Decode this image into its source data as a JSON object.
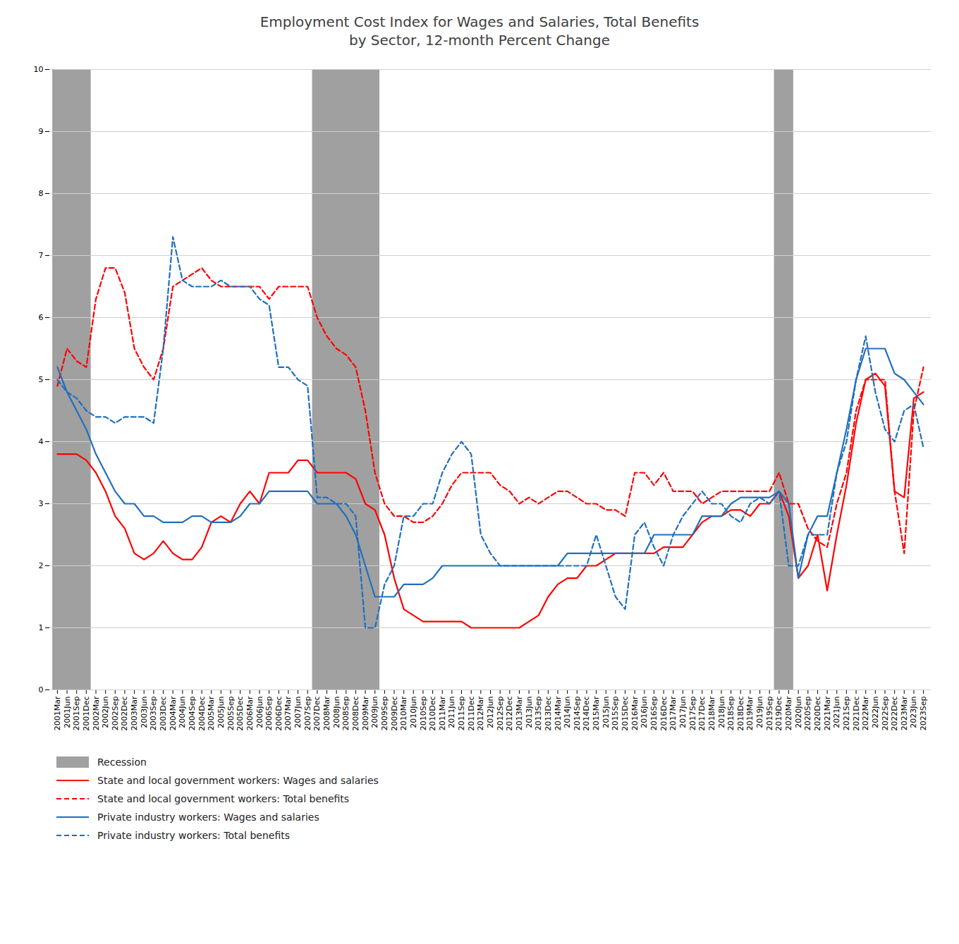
{
  "chart_data": {
    "type": "line",
    "title": "Employment Cost Index for Wages and Salaries, Total Benefits\nby Sector, 12-month Percent Change",
    "categories": [
      "2001Mar",
      "2001Jun",
      "2001Sep",
      "2001Dec",
      "2002Mar",
      "2002Jun",
      "2002Sep",
      "2002Dec",
      "2003Mar",
      "2003Jun",
      "2003Sep",
      "2003Dec",
      "2004Mar",
      "2004Jun",
      "2004Sep",
      "2004Dec",
      "2005Mar",
      "2005Jun",
      "2005Sep",
      "2005Dec",
      "2006Mar",
      "2006Jun",
      "2006Sep",
      "2006Dec",
      "2007Mar",
      "2007Jun",
      "2007Sep",
      "2007Dec",
      "2008Mar",
      "2008Jun",
      "2008Sep",
      "2008Dec",
      "2009Mar",
      "2009Jun",
      "2009Sep",
      "2009Dec",
      "2010Mar",
      "2010Jun",
      "2010Sep",
      "2010Dec",
      "2011Mar",
      "2011Jun",
      "2011Sep",
      "2011Dec",
      "2012Mar",
      "2012Jun",
      "2012Sep",
      "2012Dec",
      "2013Mar",
      "2013Jun",
      "2013Sep",
      "2013Dec",
      "2014Mar",
      "2014Jun",
      "2014Sep",
      "2014Dec",
      "2015Mar",
      "2015Jun",
      "2015Sep",
      "2015Dec",
      "2016Mar",
      "2016Jun",
      "2016Sep",
      "2016Dec",
      "2017Mar",
      "2017Jun",
      "2017Sep",
      "2017Dec",
      "2018Mar",
      "2018Jun",
      "2018Sep",
      "2018Dec",
      "2019Mar",
      "2019Jun",
      "2019Sep",
      "2019Dec",
      "2020Mar",
      "2020Jun",
      "2020Sep",
      "2020Dec",
      "2021Mar",
      "2021Jun",
      "2021Sep",
      "2021Dec",
      "2022Mar",
      "2022Jun",
      "2022Sep",
      "2022Dec",
      "2023Mar",
      "2023Jun",
      "2023Sep"
    ],
    "shaded_spans": {
      "name": "Recession",
      "color": "#A0A0A0",
      "spans": [
        [
          "2001Mar",
          "2001Dec"
        ],
        [
          "2007Dec",
          "2009Jun"
        ],
        [
          "2019Dec",
          "2020Mar"
        ]
      ]
    },
    "series": [
      {
        "name": "State and local government workers: Wages and salaries",
        "color": "#FF0000",
        "line_style": "solid",
        "values": [
          3.8,
          3.8,
          3.8,
          3.7,
          3.5,
          3.2,
          2.8,
          2.6,
          2.2,
          2.1,
          2.2,
          2.4,
          2.2,
          2.1,
          2.1,
          2.3,
          2.7,
          2.8,
          2.7,
          3.0,
          3.2,
          3.0,
          3.5,
          3.5,
          3.5,
          3.7,
          3.7,
          3.5,
          3.5,
          3.5,
          3.5,
          3.4,
          3.0,
          2.9,
          2.5,
          1.8,
          1.3,
          1.2,
          1.1,
          1.1,
          1.1,
          1.1,
          1.1,
          1.0,
          1.0,
          1.0,
          1.0,
          1.0,
          1.0,
          1.1,
          1.2,
          1.5,
          1.7,
          1.8,
          1.8,
          2.0,
          2.0,
          2.1,
          2.2,
          2.2,
          2.2,
          2.2,
          2.2,
          2.3,
          2.3,
          2.3,
          2.5,
          2.7,
          2.8,
          2.8,
          2.9,
          2.9,
          2.8,
          3.0,
          3.0,
          3.2,
          2.8,
          1.8,
          2.0,
          2.5,
          1.6,
          2.5,
          3.3,
          4.3,
          5.0,
          5.1,
          4.9,
          3.2,
          3.1,
          4.7,
          4.8
        ]
      },
      {
        "name": "State and local government workers: Total benefits",
        "color": "#FF0000",
        "line_style": "dashed",
        "values": [
          4.9,
          5.5,
          5.3,
          5.2,
          6.3,
          6.8,
          6.8,
          6.4,
          5.5,
          5.2,
          5.0,
          5.5,
          6.5,
          6.6,
          6.7,
          6.8,
          6.6,
          6.5,
          6.5,
          6.5,
          6.5,
          6.5,
          6.3,
          6.5,
          6.5,
          6.5,
          6.5,
          6.0,
          5.7,
          5.5,
          5.4,
          5.2,
          4.5,
          3.5,
          3.0,
          2.8,
          2.8,
          2.7,
          2.7,
          2.8,
          3.0,
          3.3,
          3.5,
          3.5,
          3.5,
          3.5,
          3.3,
          3.2,
          3.0,
          3.1,
          3.0,
          3.1,
          3.2,
          3.2,
          3.1,
          3.0,
          3.0,
          2.9,
          2.9,
          2.8,
          3.5,
          3.5,
          3.3,
          3.5,
          3.2,
          3.2,
          3.2,
          3.0,
          3.1,
          3.2,
          3.2,
          3.2,
          3.2,
          3.2,
          3.2,
          3.5,
          3.0,
          3.0,
          2.6,
          2.4,
          2.3,
          3.0,
          3.5,
          4.5,
          5.0,
          5.0,
          5.0,
          3.2,
          2.2,
          4.5,
          5.2
        ]
      },
      {
        "name": "Private industry workers: Wages and salaries",
        "color": "#1F6FBF",
        "line_style": "solid",
        "values": [
          5.2,
          4.8,
          4.5,
          4.2,
          3.8,
          3.5,
          3.2,
          3.0,
          3.0,
          2.8,
          2.8,
          2.7,
          2.7,
          2.7,
          2.8,
          2.8,
          2.7,
          2.7,
          2.7,
          2.8,
          3.0,
          3.0,
          3.2,
          3.2,
          3.2,
          3.2,
          3.2,
          3.0,
          3.0,
          3.0,
          2.8,
          2.5,
          2.0,
          1.5,
          1.5,
          1.5,
          1.7,
          1.7,
          1.7,
          1.8,
          2.0,
          2.0,
          2.0,
          2.0,
          2.0,
          2.0,
          2.0,
          2.0,
          2.0,
          2.0,
          2.0,
          2.0,
          2.0,
          2.2,
          2.2,
          2.2,
          2.2,
          2.2,
          2.2,
          2.2,
          2.2,
          2.2,
          2.5,
          2.5,
          2.5,
          2.5,
          2.5,
          2.8,
          2.8,
          2.8,
          3.0,
          3.1,
          3.1,
          3.1,
          3.1,
          3.2,
          3.0,
          1.8,
          2.5,
          2.8,
          2.8,
          3.5,
          4.2,
          5.0,
          5.5,
          5.5,
          5.5,
          5.1,
          5.0,
          4.8,
          4.6
        ]
      },
      {
        "name": "Private industry workers: Total benefits",
        "color": "#1F6FBF",
        "line_style": "dashed",
        "values": [
          5.0,
          4.8,
          4.7,
          4.5,
          4.4,
          4.4,
          4.3,
          4.4,
          4.4,
          4.4,
          4.3,
          5.5,
          7.3,
          6.6,
          6.5,
          6.5,
          6.5,
          6.6,
          6.5,
          6.5,
          6.5,
          6.3,
          6.2,
          5.2,
          5.2,
          5.0,
          4.9,
          3.1,
          3.1,
          3.0,
          3.0,
          2.8,
          1.0,
          1.0,
          1.7,
          2.0,
          2.8,
          2.8,
          3.0,
          3.0,
          3.5,
          3.8,
          4.0,
          3.8,
          2.5,
          2.2,
          2.0,
          2.0,
          2.0,
          2.0,
          2.0,
          2.0,
          2.0,
          2.0,
          2.0,
          2.0,
          2.5,
          2.0,
          1.5,
          1.3,
          2.5,
          2.7,
          2.3,
          2.0,
          2.5,
          2.8,
          3.0,
          3.2,
          3.0,
          3.0,
          2.8,
          2.7,
          3.0,
          3.1,
          3.0,
          3.2,
          2.0,
          2.0,
          2.5,
          2.5,
          2.5,
          3.5,
          4.0,
          5.0,
          5.7,
          4.8,
          4.2,
          4.0,
          4.5,
          4.6,
          3.9
        ]
      }
    ],
    "ylim": [
      0,
      10
    ],
    "yticks": [
      0,
      1,
      2,
      3,
      4,
      5,
      6,
      7,
      8,
      9,
      10
    ],
    "grid": true,
    "legend": "bottom"
  }
}
